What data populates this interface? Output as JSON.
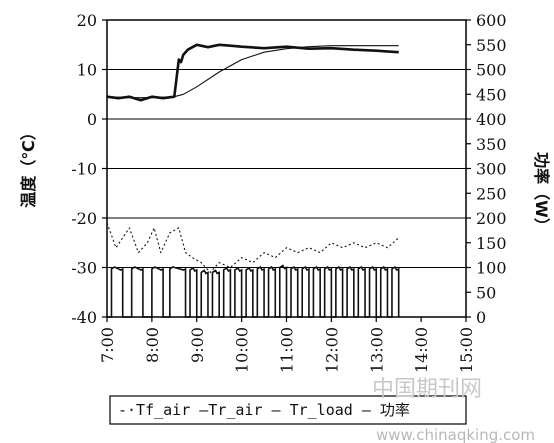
{
  "chart_data": {
    "type": "line",
    "xlim": [
      7,
      15
    ],
    "ylim_left": [
      -40,
      20
    ],
    "ylim_right": [
      0,
      600
    ],
    "x_ticks": [
      "7:00",
      "8:00",
      "9:00",
      "10:00",
      "11:00",
      "12:00",
      "13:00",
      "14:00",
      "15:00"
    ],
    "y_left_ticks": [
      "20",
      "10",
      "0",
      "-10",
      "-20",
      "-30",
      "-40"
    ],
    "y_right_ticks": [
      "600",
      "550",
      "500",
      "450",
      "400",
      "350",
      "300",
      "250",
      "200",
      "150",
      "100",
      "50",
      "0"
    ],
    "ylabel_left": "温度（℃）",
    "ylabel_right": "功率（W）",
    "grid": "horizontal",
    "legend": {
      "placement": "bottom",
      "text": "-·Tf_air —Tr_air — Tr_load — 功率"
    },
    "series": [
      {
        "name": "Tf_air",
        "axis": "left",
        "style": "dotted",
        "x": [
          7.0,
          7.2,
          7.35,
          7.5,
          7.7,
          7.9,
          8.05,
          8.2,
          8.4,
          8.6,
          8.75,
          8.9,
          9.1,
          9.3,
          9.5,
          9.75,
          10.0,
          10.25,
          10.5,
          10.75,
          11.0,
          11.25,
          11.5,
          11.75,
          12.0,
          12.25,
          12.5,
          12.75,
          13.0,
          13.25,
          13.5
        ],
        "y": [
          -21,
          -26,
          -24,
          -22,
          -27,
          -25,
          -22,
          -27,
          -23,
          -22,
          -27,
          -28,
          -29,
          -31,
          -29,
          -30,
          -28,
          -29,
          -27,
          -28,
          -26,
          -27,
          -26,
          -27,
          -25,
          -26,
          -25,
          -26,
          -25,
          -26,
          -24
        ]
      },
      {
        "name": "Tr_air",
        "axis": "left",
        "style": "solid-bold",
        "x": [
          7.0,
          7.25,
          7.5,
          7.75,
          8.0,
          8.25,
          8.5,
          8.6,
          8.65,
          8.7,
          8.8,
          9.0,
          9.25,
          9.5,
          9.75,
          10.0,
          10.5,
          11.0,
          11.5,
          12.0,
          12.5,
          13.0,
          13.5
        ],
        "y": [
          4.5,
          4.2,
          4.5,
          3.8,
          4.5,
          4.2,
          4.5,
          12,
          11.5,
          13,
          14,
          15,
          14.5,
          15,
          14.8,
          14.6,
          14.3,
          14.6,
          14.2,
          14.3,
          14.0,
          13.8,
          13.5
        ]
      },
      {
        "name": "Tr_load",
        "axis": "left",
        "style": "solid-thin",
        "x": [
          7.0,
          7.5,
          8.0,
          8.5,
          8.7,
          9.0,
          9.5,
          10.0,
          10.5,
          11.0,
          11.5,
          12.0,
          12.5,
          13.0,
          13.5
        ],
        "y": [
          4.5,
          4.3,
          4.3,
          4.5,
          5,
          6.5,
          9.5,
          12,
          13.5,
          14.2,
          14.6,
          14.8,
          14.8,
          14.8,
          14.8
        ]
      },
      {
        "name": "功率",
        "axis": "right",
        "style": "pulse",
        "pulses": [
          [
            7.1,
            7.35,
            97
          ],
          [
            7.55,
            7.8,
            97
          ],
          [
            8.0,
            8.25,
            97
          ],
          [
            8.4,
            8.75,
            97
          ],
          [
            8.85,
            9.0,
            95
          ],
          [
            9.1,
            9.25,
            90
          ],
          [
            9.35,
            9.5,
            90
          ],
          [
            9.6,
            9.75,
            95
          ],
          [
            9.85,
            10.0,
            95
          ],
          [
            10.1,
            10.25,
            95
          ],
          [
            10.35,
            10.5,
            97
          ],
          [
            10.6,
            10.75,
            97
          ],
          [
            10.85,
            11.0,
            100
          ],
          [
            11.1,
            11.25,
            97
          ],
          [
            11.35,
            11.5,
            97
          ],
          [
            11.6,
            11.75,
            97
          ],
          [
            11.85,
            12.0,
            97
          ],
          [
            12.1,
            12.25,
            97
          ],
          [
            12.35,
            12.5,
            97
          ],
          [
            12.6,
            12.75,
            97
          ],
          [
            12.85,
            13.0,
            97
          ],
          [
            13.1,
            13.25,
            97
          ],
          [
            13.35,
            13.5,
            97
          ]
        ]
      }
    ]
  },
  "watermark": {
    "cn": "中国期刊网",
    "url": "www.chinaqking.com"
  }
}
